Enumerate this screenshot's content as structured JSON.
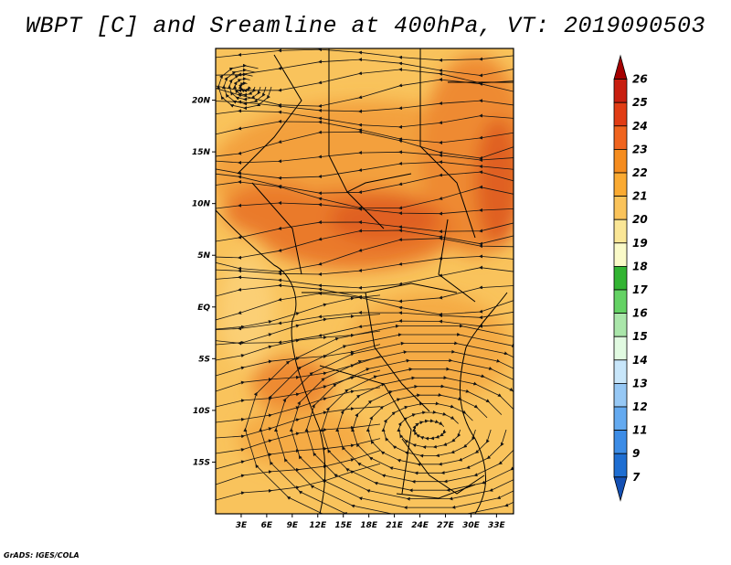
{
  "title": "WBPT [C] and Sreamline at 400hPa, VT: 2019090503",
  "credit": "GrADS: IGES/COLA",
  "map": {
    "lon_range": [
      0,
      35
    ],
    "lat_range": [
      -20,
      25
    ],
    "lon_labels": [
      "3E",
      "6E",
      "9E",
      "12E",
      "15E",
      "18E",
      "21E",
      "24E",
      "27E",
      "30E",
      "33E"
    ],
    "lon_values": [
      3,
      6,
      9,
      12,
      15,
      18,
      21,
      24,
      27,
      30,
      33
    ],
    "lat_labels": [
      "20N",
      "15N",
      "10N",
      "5N",
      "EQ",
      "5S",
      "10S",
      "15S"
    ],
    "lat_values": [
      20,
      15,
      10,
      5,
      0,
      -5,
      -10,
      -15
    ]
  },
  "colorbar": {
    "levels": [
      "26",
      "25",
      "24",
      "23",
      "22",
      "21",
      "20",
      "19",
      "18",
      "17",
      "16",
      "15",
      "14",
      "13",
      "12",
      "11",
      "9",
      "7"
    ],
    "colors": [
      "#a50000",
      "#c81e0f",
      "#e13c14",
      "#f0641e",
      "#f58c1e",
      "#faaa32",
      "#fac35a",
      "#fae696",
      "#fafac8",
      "#32b432",
      "#64d264",
      "#aae6aa",
      "#e1fae1",
      "#c8e6fa",
      "#96c8f5",
      "#64aaf0",
      "#3c8ce6",
      "#1e6ed2",
      "#1450b4"
    ]
  },
  "colors": {
    "base": "#f9c35c",
    "warm": "#f3a03c",
    "hot": "#ea7a2a",
    "hottest": "#e06020",
    "stream": "#141414",
    "border": "#000000"
  }
}
